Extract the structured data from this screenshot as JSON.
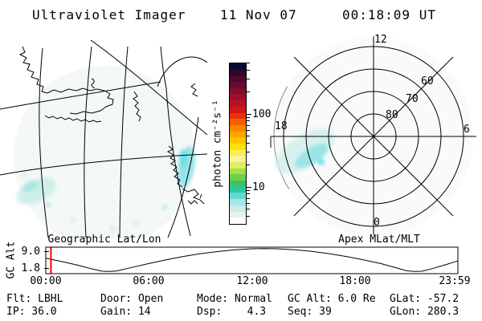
{
  "header": {
    "app_title": "Ultraviolet Imager",
    "date": "11 Nov 07",
    "time": "00:18:09 UT"
  },
  "map_panel": {
    "caption": "Geographic Lat/Lon"
  },
  "polar_panel": {
    "caption": "Apex MLat/MLT",
    "top_label": "12",
    "left_label": "18",
    "right_label": "6",
    "bottom_label": "0",
    "ring_labels": [
      "80",
      "70",
      "60"
    ]
  },
  "colorbar": {
    "unit_label": "photon cm⁻²s⁻¹",
    "scale": "log",
    "major_ticks": [
      {
        "value": 100,
        "label": "100"
      },
      {
        "value": 10,
        "label": "10"
      }
    ],
    "minor_tick_values": [
      4,
      5,
      6,
      7,
      8,
      9,
      20,
      30,
      40,
      50,
      60,
      70,
      80,
      90,
      200,
      300,
      400,
      500
    ],
    "colors_top_to_bottom": [
      "#0a0a30",
      "#2c0829",
      "#480a2d",
      "#640c31",
      "#800e32",
      "#9c102e",
      "#b81226",
      "#d41518",
      "#ea3206",
      "#f55e00",
      "#fa8400",
      "#fda600",
      "#fec600",
      "#fee00a",
      "#fcee52",
      "#f6f2a0",
      "#dcee66",
      "#aade44",
      "#70ce4e",
      "#38c46a",
      "#2cc8a4",
      "#64d8d0",
      "#a6e6e6",
      "#cfe9e8",
      "#e6f0ee",
      "#ffffff"
    ]
  },
  "orbit_chart": {
    "ylabel": "GC Alt",
    "ytick_labels": [
      "9.0",
      "1.8"
    ],
    "xtick_labels": [
      "00:00",
      "06:00",
      "12:00",
      "18:00",
      "23:59"
    ],
    "marker_color": "#ff0000"
  },
  "status_bar": {
    "rows": [
      [
        "Flt: LBHL",
        "Door: Open",
        "Mode: Normal",
        "GC Alt: 6.0 Re",
        "GLat: -57.2"
      ],
      [
        "IP: 36.0",
        "Gain: 14",
        "Dsp:    4.3",
        "Seq: 39",
        "GLon: 280.3"
      ]
    ]
  },
  "chart_data": [
    {
      "type": "heatmap",
      "panel": "map",
      "title": "Geographic Lat/Lon",
      "description": "UV image projected on geographic map of southern South America / Antarctic Peninsula; faint airglow disk with weak cyan aurora patches (~5-15 photon cm-2 s-1) at lower-left limb and right side",
      "colorscale_label": "photon cm⁻²s⁻¹",
      "colorscale_ticks": [
        10,
        100
      ],
      "scale": "log",
      "approx_value_range": [
        3,
        500
      ]
    },
    {
      "type": "heatmap",
      "panel": "polar",
      "title": "Apex MLat/MLT",
      "rings_mlat": [
        80,
        70,
        60,
        50
      ],
      "mlt_spokes": [
        0,
        6,
        12,
        18
      ],
      "aurora_note": "faint cyan patch ~5-15 photon cm-2 s-1 spanning ~15-18 MLT, ~55-70 deg MLat"
    },
    {
      "type": "line",
      "panel": "orbit",
      "ylabel": "GC Alt",
      "yticks": [
        9.0,
        1.8
      ],
      "xticks": [
        "00:00",
        "06:00",
        "12:00",
        "18:00",
        "23:59"
      ],
      "ylim": [
        0,
        10.5
      ],
      "x_hours": [
        0,
        0.9,
        1.8,
        2.7,
        3.3,
        3.7,
        4.1,
        5,
        6,
        7,
        8,
        9,
        10,
        11,
        12,
        12.7,
        13.5,
        14.5,
        15.5,
        16.5,
        17.5,
        18.5,
        19.5,
        20.4,
        21.0,
        21.5,
        21.9,
        22.5,
        23.2,
        24
      ],
      "y_re": [
        6.2,
        4.8,
        3.3,
        1.6,
        0.6,
        0.5,
        0.7,
        2.2,
        3.9,
        5.5,
        6.9,
        8.1,
        9.0,
        9.8,
        10.2,
        10.3,
        10.2,
        9.8,
        9.1,
        8.1,
        6.9,
        5.5,
        3.9,
        2.1,
        0.8,
        0.5,
        0.6,
        1.7,
        3.2,
        5.0
      ],
      "marker_time_hours": 0.3
    }
  ]
}
